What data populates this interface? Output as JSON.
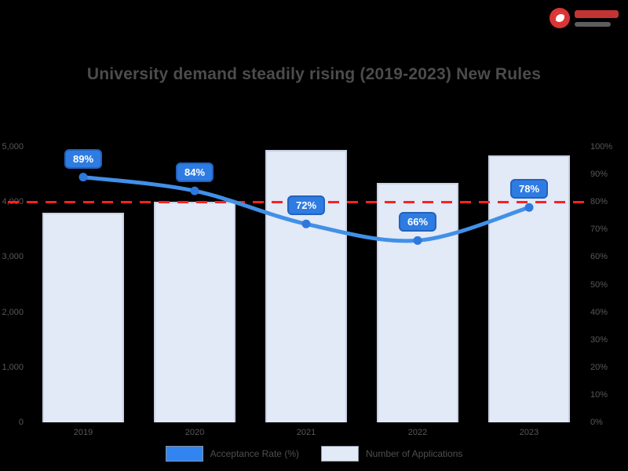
{
  "title": "University demand steadily rising (2019-2023) New Rules",
  "brand": {
    "logo_color": "#d93535"
  },
  "chart_data": {
    "type": "bar+line combo",
    "categories": [
      "2019",
      "2020",
      "2021",
      "2022",
      "2023"
    ],
    "series": [
      {
        "name": "Number of Applications",
        "type": "bar",
        "axis": "left",
        "values": [
          3800,
          4000,
          4950,
          4350,
          4850
        ],
        "fill": "#e2e9f7",
        "border": "#c9d1e2"
      },
      {
        "name": "Acceptance Rate (%)",
        "type": "line",
        "axis": "right",
        "values": [
          89,
          84,
          72,
          66,
          78
        ],
        "point_labels": [
          "89%",
          "84%",
          "72%",
          "66%",
          "78%"
        ],
        "color": "#4190e8",
        "point_color": "#2e77dc",
        "label_bg": "#2e7ce2"
      }
    ],
    "left_axis": {
      "min": 0,
      "max": 5000,
      "ticks": [
        "5,000",
        "4,000",
        "3,000",
        "2,000",
        "1,000",
        "0"
      ]
    },
    "right_axis": {
      "min": 0,
      "max": 100,
      "ticks": [
        "100%",
        "90%",
        "80%",
        "70%",
        "60%",
        "50%",
        "40%",
        "30%",
        "20%",
        "10%",
        "0%"
      ]
    },
    "threshold": {
      "value": 80,
      "color": "#ff2020",
      "style": "dashed"
    },
    "legend": [
      {
        "label": "Acceptance Rate (%)",
        "swatch": "#3285f0"
      },
      {
        "label": "Number of Applications",
        "swatch": "#e2e9f7"
      }
    ],
    "grid": "off",
    "legend_position": "bottom",
    "title_color": "#4c4c4c",
    "background": "#000000"
  }
}
